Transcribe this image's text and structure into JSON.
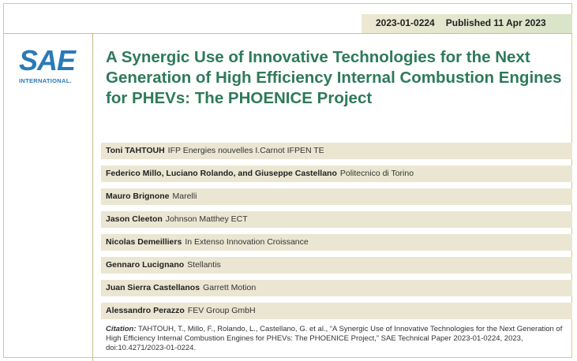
{
  "header": {
    "paper_number": "2023-01-0224",
    "published": "Published 11 Apr 2023"
  },
  "logo": {
    "brand": "SAE",
    "subtitle": "INTERNATIONAL."
  },
  "title": "A Synergic Use of Innovative Technologies for the Next Generation of High Efficiency Internal Combustion Engines for PHEVs: The PHOENICE Project",
  "authors": [
    {
      "names": "Toni TAHTOUH",
      "affiliation": "IFP Energies nouvelles I.Carnot IFPEN TE"
    },
    {
      "names": "Federico Millo, Luciano Rolando, and Giuseppe Castellano",
      "affiliation": "Politecnico di Torino"
    },
    {
      "names": "Mauro Brignone",
      "affiliation": "Marelli"
    },
    {
      "names": "Jason Cleeton",
      "affiliation": "Johnson Matthey ECT"
    },
    {
      "names": "Nicolas Demeilliers",
      "affiliation": "In Extenso Innovation Croissance"
    },
    {
      "names": "Gennaro Lucignano",
      "affiliation": "Stellantis"
    },
    {
      "names": "Juan Sierra Castellanos",
      "affiliation": "Garrett Motion"
    },
    {
      "names": "Alessandro Perazzo",
      "affiliation": "FEV Group GmbH"
    }
  ],
  "citation": {
    "label": "Citation:",
    "text": "TAHTOUH, T., Millo, F., Rolando, L., Castellano, G. et al., “A Synergic Use of Innovative Technologies for the Next Generation of High Efficiency Internal Combustion Engines for PHEVs: The PHOENICE Project,” SAE Technical Paper 2023-01-0224, 2023, doi:10.4271/2023-01-0224."
  },
  "colors": {
    "title": "#2e7a5a",
    "logo": "#2a7ab8",
    "band": "#eae6d2"
  }
}
